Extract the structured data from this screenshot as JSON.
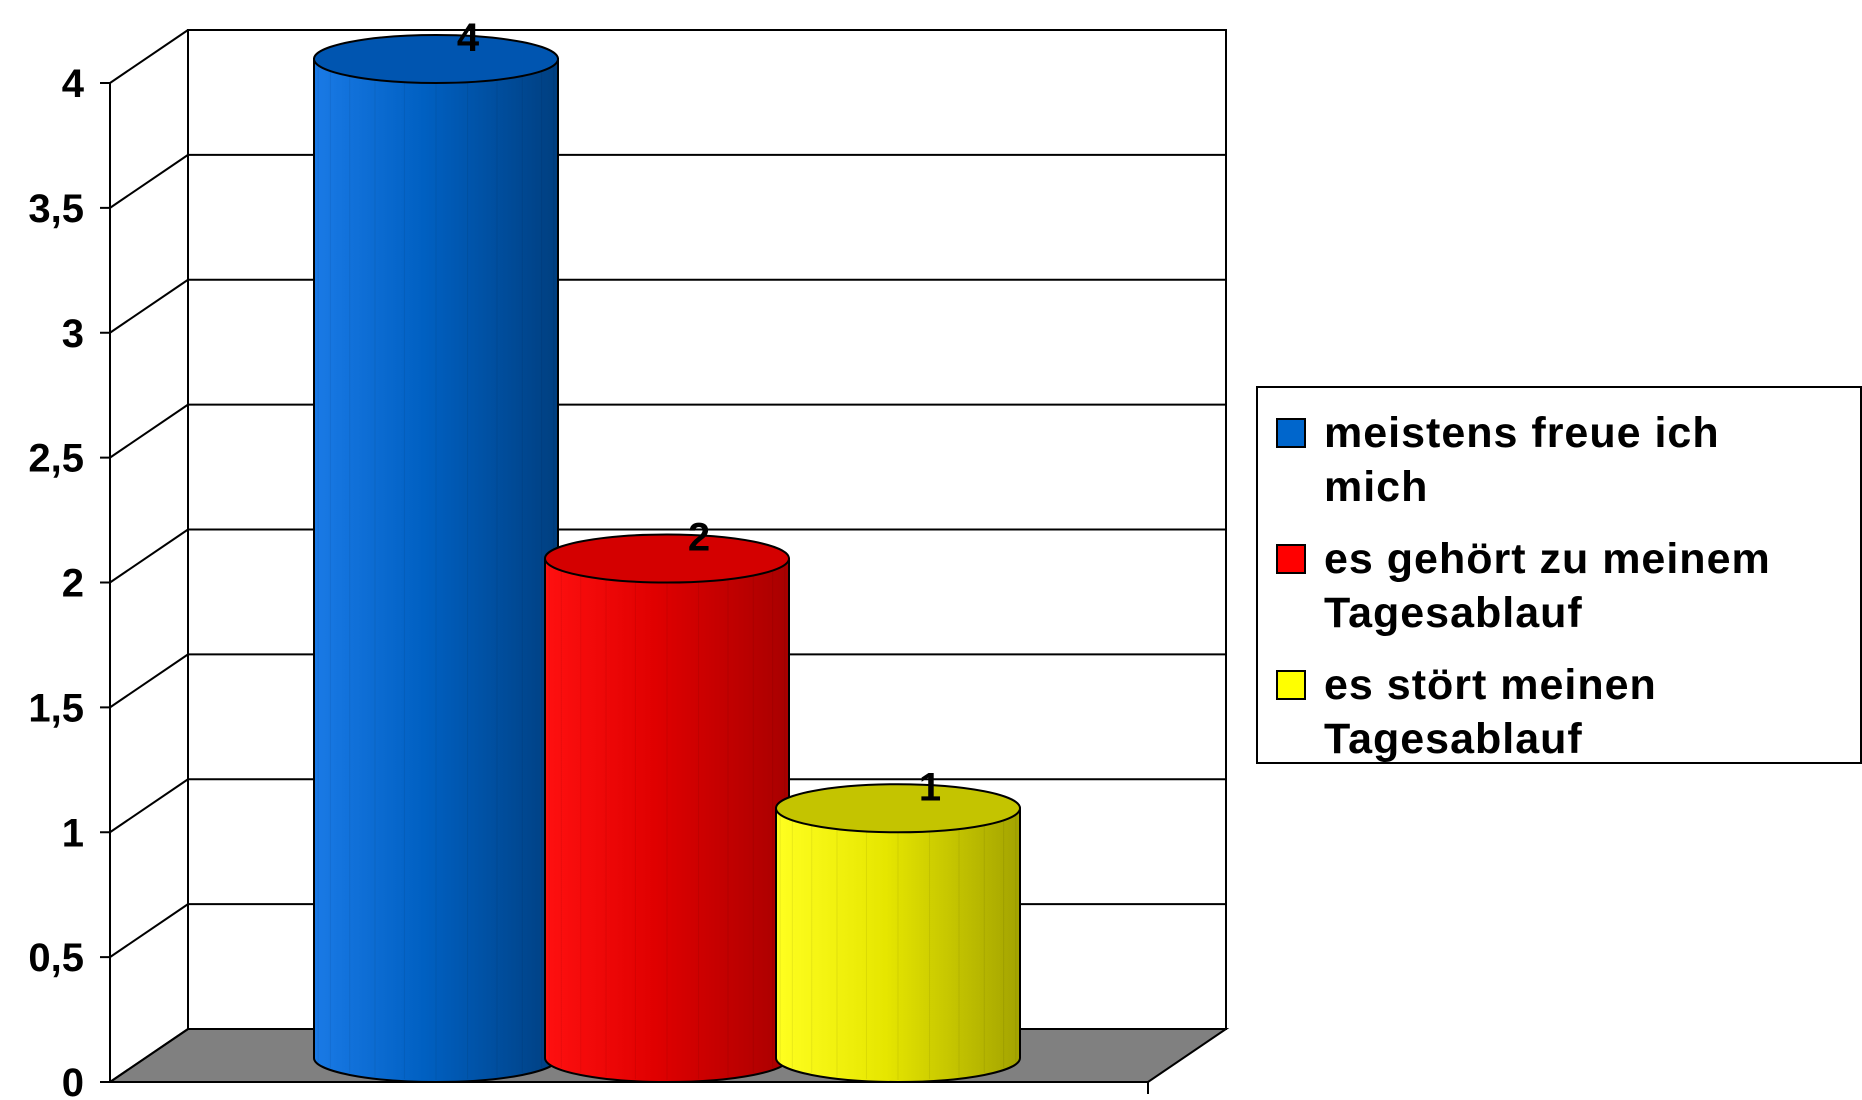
{
  "chart_data": {
    "type": "bar",
    "categories": [
      "meistens freue ich mich",
      "es gehört zu meinem Tagesablauf",
      "es stört meinen Tagesablauf"
    ],
    "values": [
      4,
      2,
      1
    ],
    "data_labels": [
      "4",
      "2",
      "1"
    ],
    "title": "",
    "xlabel": "",
    "ylabel": "",
    "ylim": [
      0,
      4
    ],
    "y_ticks": [
      "0",
      "0,5",
      "1",
      "1,5",
      "2",
      "2,5",
      "3",
      "3,5",
      "4"
    ],
    "grid": true,
    "legend_position": "right",
    "series": [
      {
        "name": "meistens freue ich mich",
        "value": 4,
        "color": "#0066cc"
      },
      {
        "name": "es gehört zu meinem Tagesablauf",
        "value": 2,
        "color": "#ff0000"
      },
      {
        "name": "es stört meinen Tagesablauf",
        "value": 1,
        "color": "#ffff00"
      }
    ]
  },
  "legend": {
    "items": [
      {
        "line1": "meistens freue ich",
        "line2": "mich",
        "color": "#0066cc"
      },
      {
        "line1": "es gehört zu meinem",
        "line2": "Tagesablauf",
        "color": "#ff0000"
      },
      {
        "line1": "es stört meinen",
        "line2": "Tagesablauf",
        "color": "#ffff00"
      }
    ]
  }
}
